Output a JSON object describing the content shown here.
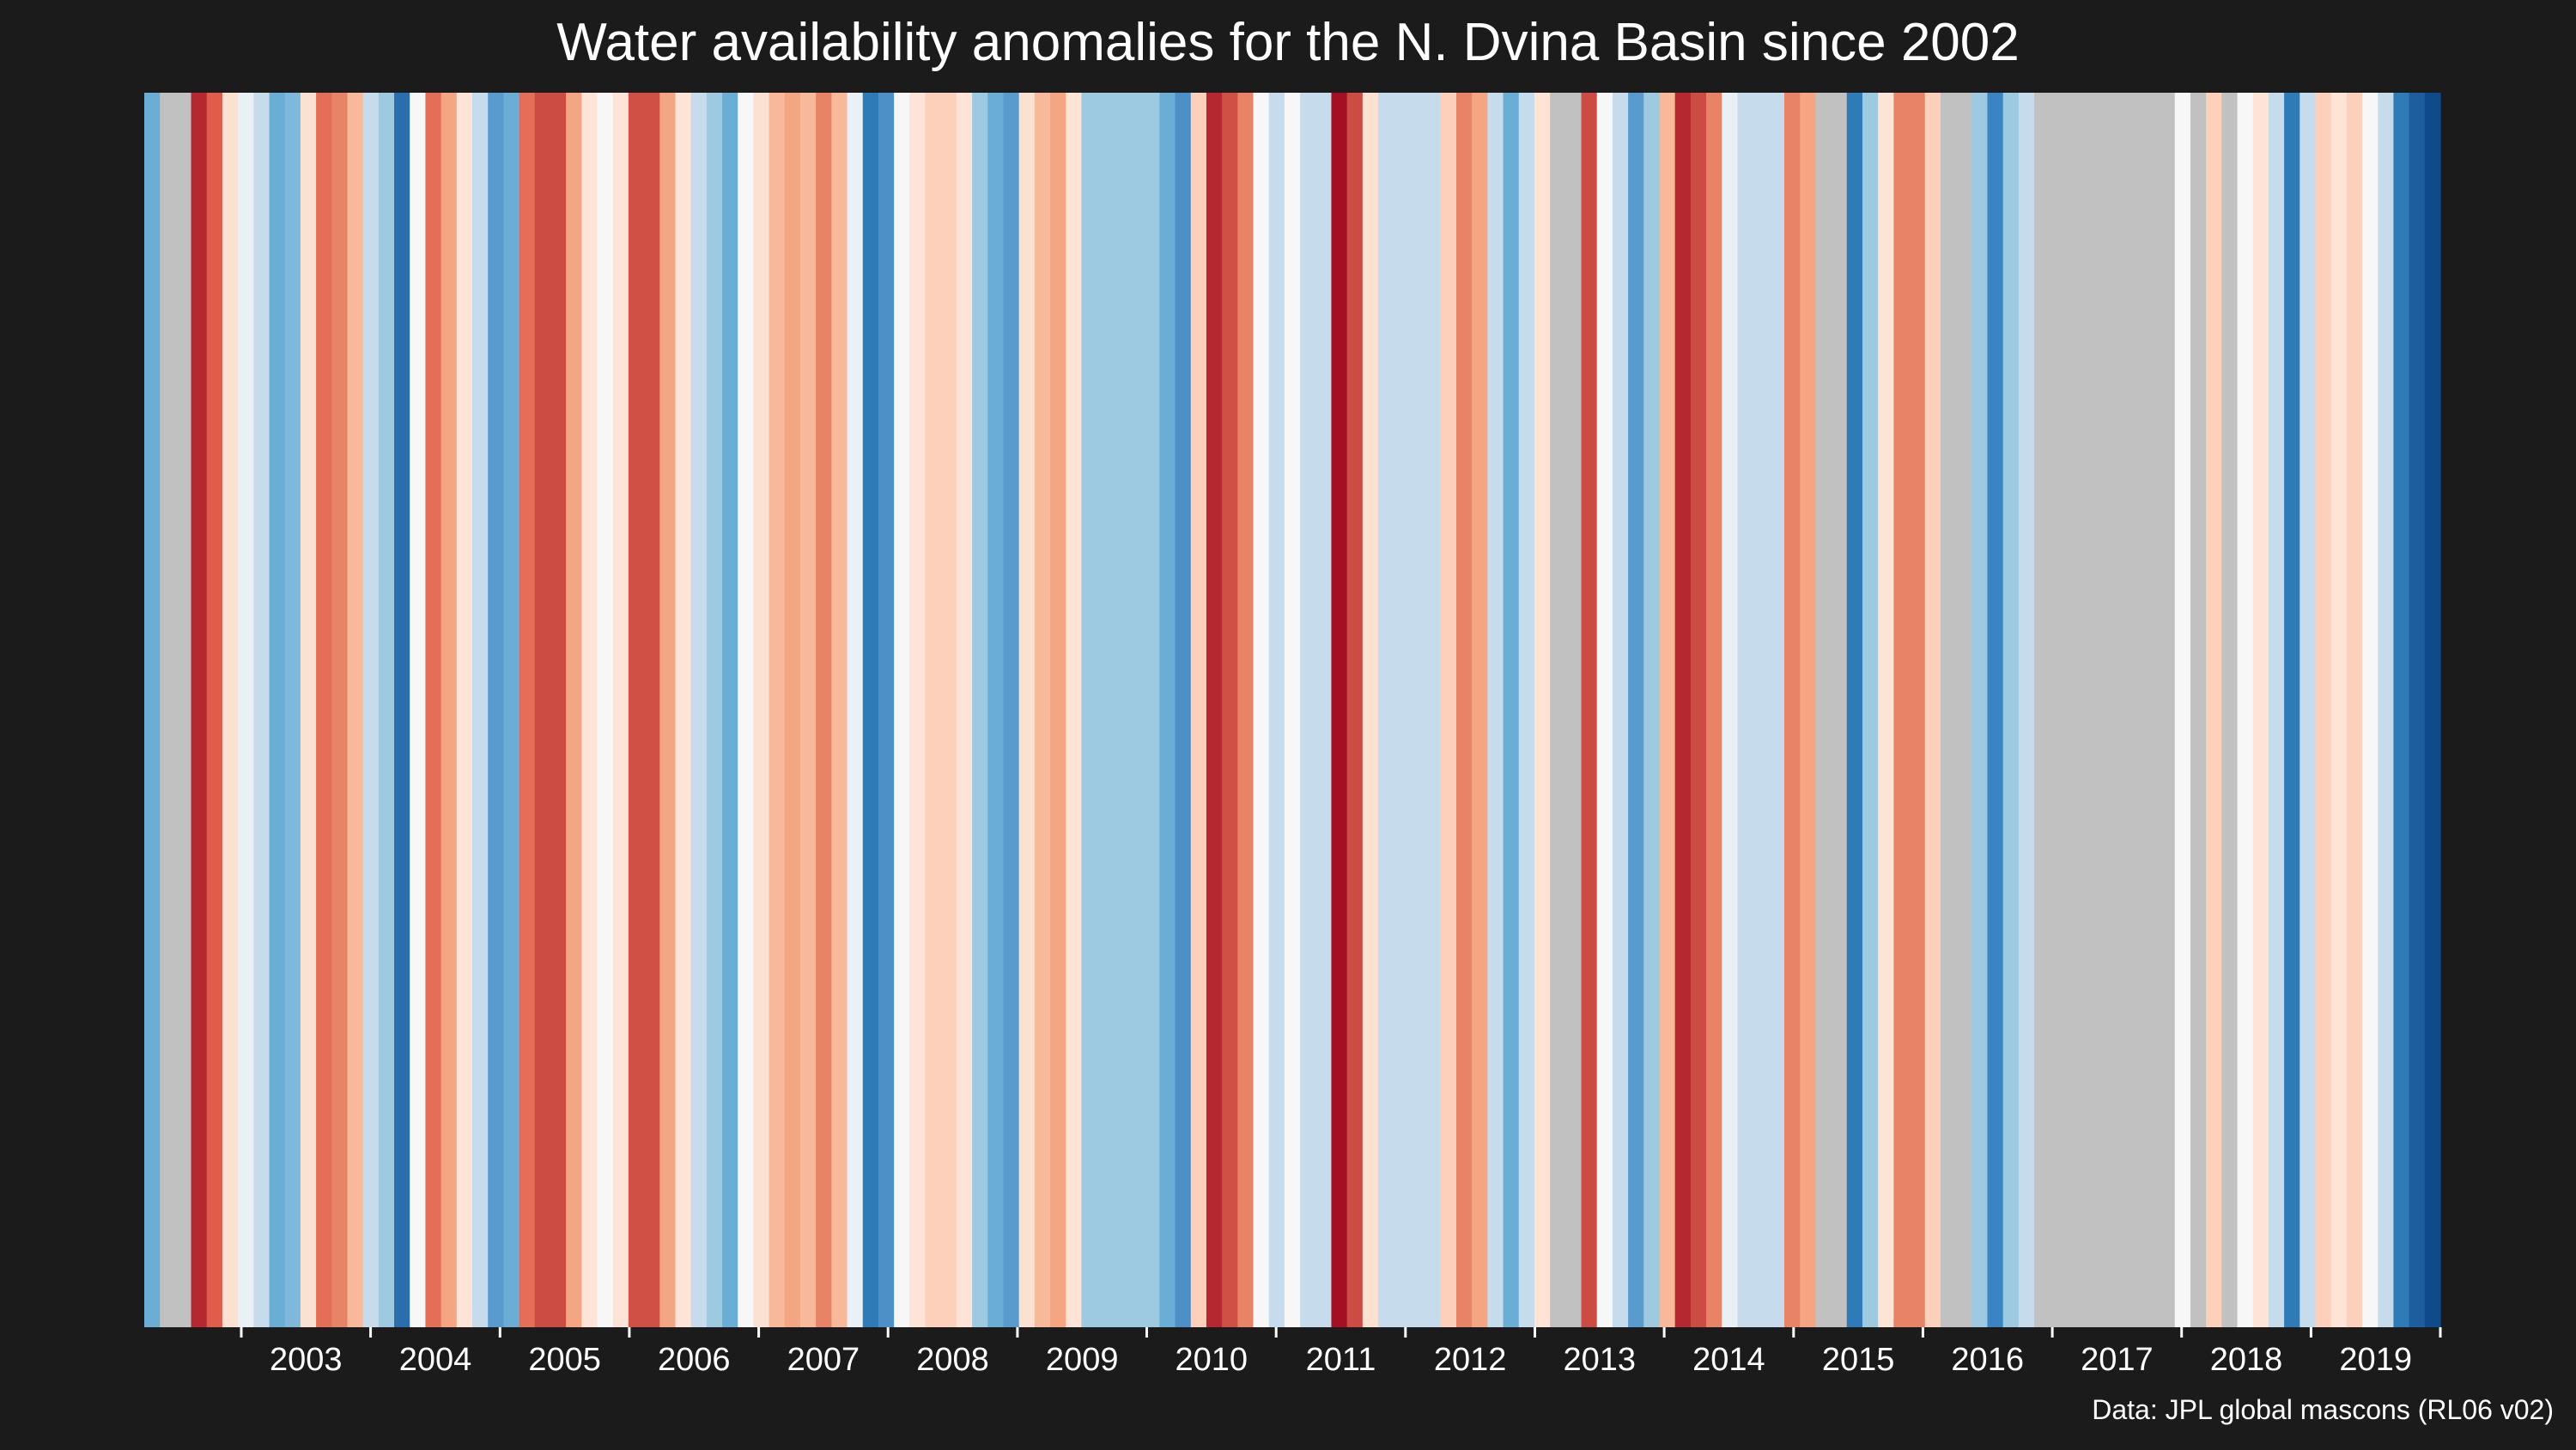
{
  "title": "Water availability anomalies for the N. Dvina Basin since 2002",
  "caption": "Data: JPL global mascons (RL06 v02)",
  "chart_data": {
    "type": "heatmap",
    "title": "Water availability anomalies for the N. Dvina Basin since 2002",
    "x_tick_labels": [
      "2003",
      "2004",
      "2005",
      "2006",
      "2007",
      "2008",
      "2009",
      "2010",
      "2011",
      "2012",
      "2013",
      "2014",
      "2015",
      "2016",
      "2017",
      "2018",
      "2019"
    ],
    "start": "2002-04",
    "end": "2020-01",
    "colormap": "RdBu (red = deficit, blue = surplus)",
    "missing_color": "#c1c1c1",
    "stripes": [
      {
        "color": "#6aaed6"
      },
      {
        "color": "#c1c1c1"
      },
      {
        "color": "#c1c1c1"
      },
      {
        "color": "#b6282f"
      },
      {
        "color": "#e05c4b"
      },
      {
        "color": "#fbe1d2"
      },
      {
        "color": "#eaf1f6"
      },
      {
        "color": "#c6dcec"
      },
      {
        "color": "#6aaed6"
      },
      {
        "color": "#7fb8da"
      },
      {
        "color": "#fbe1d2"
      },
      {
        "color": "#e46e56"
      },
      {
        "color": "#e98365"
      },
      {
        "color": "#f8b89a"
      },
      {
        "color": "#c6dcec"
      },
      {
        "color": "#9ecae1"
      },
      {
        "color": "#2b6ead"
      },
      {
        "color": "#f7f7f7"
      },
      {
        "color": "#e46e56"
      },
      {
        "color": "#f4a582"
      },
      {
        "color": "#fde4d6"
      },
      {
        "color": "#c6dcec"
      },
      {
        "color": "#5a9bcd"
      },
      {
        "color": "#6aaed6"
      },
      {
        "color": "#e46e56"
      },
      {
        "color": "#cc4c43"
      },
      {
        "color": "#cc4c43"
      },
      {
        "color": "#f4a582"
      },
      {
        "color": "#fde4d6"
      },
      {
        "color": "#f7f7f7"
      },
      {
        "color": "#fde4d6"
      },
      {
        "color": "#d05045"
      },
      {
        "color": "#d05045"
      },
      {
        "color": "#f4a582"
      },
      {
        "color": "#fde4d6"
      },
      {
        "color": "#c6dcec"
      },
      {
        "color": "#9ecae1"
      },
      {
        "color": "#6aaed6"
      },
      {
        "color": "#f7f7f7"
      },
      {
        "color": "#fbe1d2"
      },
      {
        "color": "#f8b89a"
      },
      {
        "color": "#f4a582"
      },
      {
        "color": "#f8b89a"
      },
      {
        "color": "#e98365"
      },
      {
        "color": "#f8b89a"
      },
      {
        "color": "#eaf1f6"
      },
      {
        "color": "#2f7bb8"
      },
      {
        "color": "#4d8fc7"
      },
      {
        "color": "#f7f7f7"
      },
      {
        "color": "#fde4d6"
      },
      {
        "color": "#fcd0bb"
      },
      {
        "color": "#fcd0bb"
      },
      {
        "color": "#fde4d6"
      },
      {
        "color": "#9ecae1"
      },
      {
        "color": "#6aaed6"
      },
      {
        "color": "#5a9bcd"
      },
      {
        "color": "#fbe1d2"
      },
      {
        "color": "#f8b89a"
      },
      {
        "color": "#f4a582"
      },
      {
        "color": "#fde4d6"
      },
      {
        "color": "#9ecae1"
      },
      {
        "color": "#9ecae1"
      },
      {
        "color": "#9ecae1"
      },
      {
        "color": "#9ecae1"
      },
      {
        "color": "#9ecae1"
      },
      {
        "color": "#6aaed6"
      },
      {
        "color": "#4d8fc7"
      },
      {
        "color": "#fcd0bb"
      },
      {
        "color": "#b6282f"
      },
      {
        "color": "#d05045"
      },
      {
        "color": "#e98365"
      },
      {
        "color": "#f7f7f7"
      },
      {
        "color": "#c6dcec"
      },
      {
        "color": "#f7f7f7"
      },
      {
        "color": "#c6dcec"
      },
      {
        "color": "#c6dcec"
      },
      {
        "color": "#a50f24"
      },
      {
        "color": "#cc4c43"
      },
      {
        "color": "#fbe1d2"
      },
      {
        "color": "#c6dcec"
      },
      {
        "color": "#c6dcec"
      },
      {
        "color": "#c6dcec"
      },
      {
        "color": "#c6dcec"
      },
      {
        "color": "#fcd0bb"
      },
      {
        "color": "#e98365"
      },
      {
        "color": "#f4a582"
      },
      {
        "color": "#c6dcec"
      },
      {
        "color": "#6aaed6"
      },
      {
        "color": "#c6dcec"
      },
      {
        "color": "#fde4d6"
      },
      {
        "color": "#c1c1c1"
      },
      {
        "color": "#c1c1c1"
      },
      {
        "color": "#cc4c43"
      },
      {
        "color": "#f7f7f7"
      },
      {
        "color": "#c6dcec"
      },
      {
        "color": "#5a9bcd"
      },
      {
        "color": "#9ecae1"
      },
      {
        "color": "#f8b89a"
      },
      {
        "color": "#b6282f"
      },
      {
        "color": "#cc4c43"
      },
      {
        "color": "#e98365"
      },
      {
        "color": "#eaf1f6"
      },
      {
        "color": "#c6dcec"
      },
      {
        "color": "#c6dcec"
      },
      {
        "color": "#c6dcec"
      },
      {
        "color": "#e98365"
      },
      {
        "color": "#f4a582"
      },
      {
        "color": "#c1c1c1"
      },
      {
        "color": "#c1c1c1"
      },
      {
        "color": "#2f7bb8"
      },
      {
        "color": "#9ecae1"
      },
      {
        "color": "#fde4d6"
      },
      {
        "color": "#e98365"
      },
      {
        "color": "#e98365"
      },
      {
        "color": "#fcd0bb"
      },
      {
        "color": "#c1c1c1"
      },
      {
        "color": "#c1c1c1"
      },
      {
        "color": "#9ecae1"
      },
      {
        "color": "#3a85c1"
      },
      {
        "color": "#9ecae1"
      },
      {
        "color": "#c6dcec"
      },
      {
        "color": "#c1c1c1"
      },
      {
        "color": "#c1c1c1"
      },
      {
        "color": "#c1c1c1"
      },
      {
        "color": "#c1c1c1"
      },
      {
        "color": "#c1c1c1"
      },
      {
        "color": "#c1c1c1"
      },
      {
        "color": "#c1c1c1"
      },
      {
        "color": "#c1c1c1"
      },
      {
        "color": "#c1c1c1"
      },
      {
        "color": "#f7f7f7"
      },
      {
        "color": "#c1c1c1"
      },
      {
        "color": "#fcd0bb"
      },
      {
        "color": "#c1c1c1"
      },
      {
        "color": "#f7f7f7"
      },
      {
        "color": "#fde4d6"
      },
      {
        "color": "#c6dcec"
      },
      {
        "color": "#2f7bb8"
      },
      {
        "color": "#c6dcec"
      },
      {
        "color": "#fcd0bb"
      },
      {
        "color": "#fde4d6"
      },
      {
        "color": "#fcd0bb"
      },
      {
        "color": "#f7f7f7"
      },
      {
        "color": "#c6dcec"
      },
      {
        "color": "#2f7bb8"
      },
      {
        "color": "#1e5d9e"
      },
      {
        "color": "#0f4a8a"
      }
    ]
  }
}
